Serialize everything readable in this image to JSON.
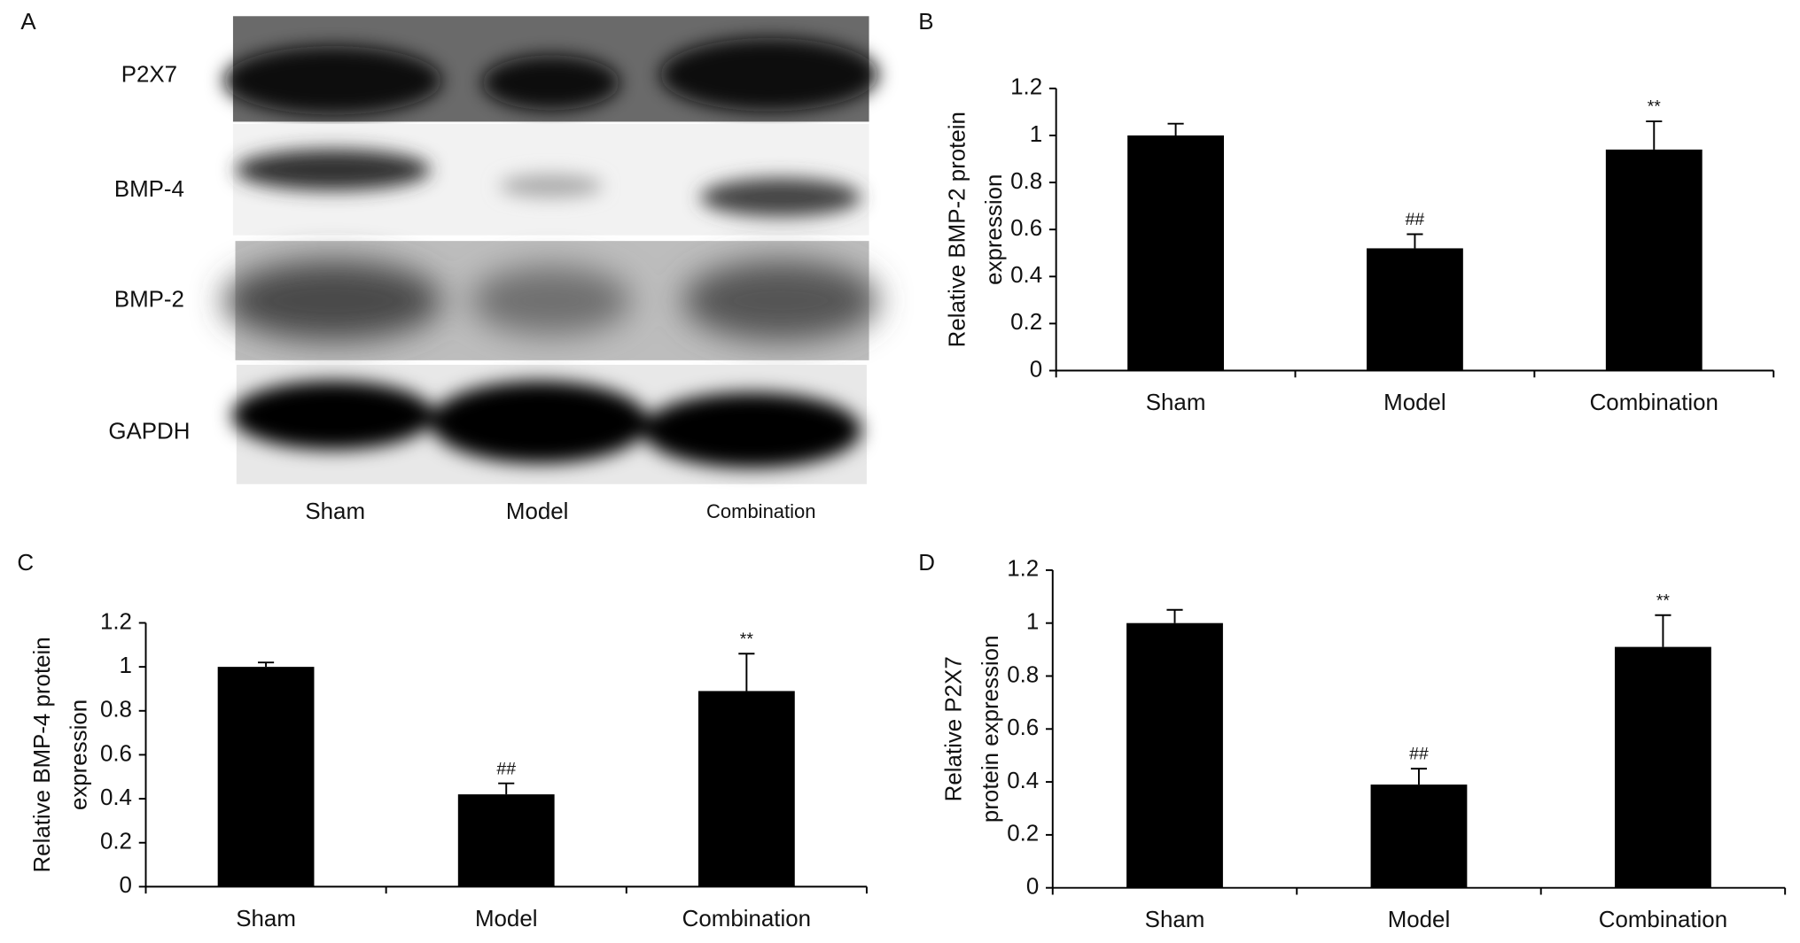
{
  "blot": {
    "panel": "A",
    "rows": [
      "P2X7",
      "BMP-4",
      "BMP-2",
      "GAPDH"
    ],
    "lanes": [
      "Sham",
      "Model",
      "Combination"
    ]
  },
  "chart_data": [
    {
      "type": "bar",
      "panel": "B",
      "ylabel": [
        "Relative BMP-2 protein",
        "expression"
      ],
      "categories": [
        "Sham",
        "Model",
        "Combination"
      ],
      "values": [
        1,
        0.52,
        0.94
      ],
      "errors": [
        0.05,
        0.06,
        0.12
      ],
      "annotations": [
        null,
        "##",
        "**"
      ],
      "color": "#000000",
      "ylim": [
        0,
        1.2
      ],
      "yticks": [
        0,
        0.2,
        0.4,
        0.6,
        0.8,
        1,
        1.2
      ]
    },
    {
      "type": "bar",
      "panel": "C",
      "ylabel": [
        "Relative BMP-4 protein",
        "expression"
      ],
      "categories": [
        "Sham",
        "Model",
        "Combination"
      ],
      "values": [
        1,
        0.42,
        0.89
      ],
      "errors": [
        0.02,
        0.05,
        0.17
      ],
      "annotations": [
        null,
        "##",
        "**"
      ],
      "color": "#000000",
      "ylim": [
        0,
        1.2
      ],
      "yticks": [
        0,
        0.2,
        0.4,
        0.6,
        0.8,
        1,
        1.2
      ]
    },
    {
      "type": "bar",
      "panel": "D",
      "ylabel": [
        "Relative P2X7",
        "protein expression"
      ],
      "categories": [
        "Sham",
        "Model",
        "Combination"
      ],
      "values": [
        1,
        0.39,
        0.91
      ],
      "errors": [
        0.05,
        0.06,
        0.12
      ],
      "annotations": [
        null,
        "##",
        "**"
      ],
      "color": "#000000",
      "ylim": [
        0,
        1.2
      ],
      "yticks": [
        0,
        0.2,
        0.4,
        0.6,
        0.8,
        1,
        1.2
      ]
    }
  ]
}
